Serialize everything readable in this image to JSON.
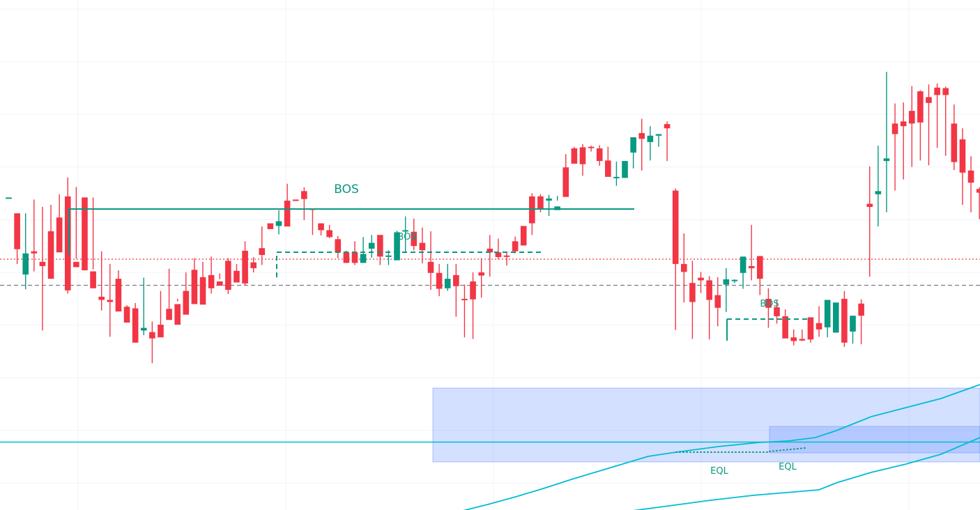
{
  "chart_data": {
    "type": "candlestick",
    "title": "",
    "xlabel": "",
    "ylabel": "",
    "y_range": [
      0.0,
      9.66
    ],
    "x_index_range": [
      0,
      128
    ],
    "grid": true,
    "colors": {
      "up": "#089981",
      "down": "#f23645",
      "label": "#089981",
      "zone_fill": "#2962ff",
      "zone_strong": "#2962ff",
      "ma": "#00bcd4",
      "resistance": "#f23645",
      "mid_level": "#787b86",
      "grid": "#f0f3fa"
    },
    "candles": [
      [
        0,
        5.92,
        5.92,
        5.92,
        5.92
      ],
      [
        1,
        5.62,
        5.4,
        4.94,
        4.66
      ],
      [
        2,
        4.46,
        5.62,
        4.86,
        4.18
      ],
      [
        3,
        4.9,
        5.88,
        4.86,
        4.52
      ],
      [
        4,
        4.7,
        5.74,
        4.62,
        3.4
      ],
      [
        5,
        5.28,
        5.78,
        4.38,
        4.38
      ],
      [
        6,
        5.54,
        5.98,
        4.88,
        5.14
      ],
      [
        7,
        5.94,
        6.3,
        4.16,
        4.1
      ],
      [
        8,
        4.7,
        6.12,
        4.6,
        4.76
      ],
      [
        9,
        5.92,
        5.92,
        4.54,
        5.0
      ],
      [
        10,
        4.52,
        5.92,
        4.2,
        4.56
      ],
      [
        11,
        4.04,
        4.9,
        3.98,
        3.78
      ],
      [
        12,
        3.98,
        4.66,
        3.94,
        3.28
      ],
      [
        13,
        4.38,
        4.54,
        3.76,
        3.82
      ],
      [
        14,
        3.85,
        3.88,
        3.55,
        3.57
      ],
      [
        15,
        3.82,
        3.92,
        3.17,
        3.17
      ],
      [
        16,
        3.4,
        4.4,
        3.45,
        3.31
      ],
      [
        17,
        3.37,
        3.57,
        3.25,
        2.78
      ],
      [
        18,
        3.51,
        4.15,
        3.27,
        3.45
      ],
      [
        19,
        3.81,
        4.57,
        3.6,
        3.62
      ],
      [
        20,
        3.9,
        4.0,
        3.51,
        3.95
      ],
      [
        21,
        4.15,
        4.5,
        3.7,
        3.99
      ],
      [
        22,
        4.55,
        4.77,
        3.9,
        4.0
      ],
      [
        23,
        4.41,
        4.7,
        3.89,
        4.17
      ],
      [
        24,
        4.45,
        4.8,
        4.2,
        4.1
      ],
      [
        25,
        4.33,
        4.48,
        4.25,
        4.37
      ],
      [
        26,
        4.72,
        4.77,
        4.17,
        4.09
      ],
      [
        27,
        4.53,
        4.66,
        4.31,
        4.38
      ],
      [
        28,
        4.91,
        5.09,
        4.29,
        4.25
      ],
      [
        29,
        4.69,
        4.79,
        4.58,
        4.5
      ],
      [
        30,
        4.96,
        5.37,
        4.83,
        4.64
      ],
      [
        31,
        5.43,
        5.32,
        5.32,
        5.38
      ],
      [
        32,
        5.38,
        5.68,
        5.47,
        5.22
      ],
      [
        33,
        5.86,
        6.18,
        5.37,
        5.77
      ],
      [
        34,
        5.88,
        5.95,
        5.86,
        5.95
      ],
      [
        35,
        6.04,
        6.11,
        5.89,
        5.49
      ],
      [
        36,
        5.71,
        5.71,
        5.69,
        5.21
      ],
      [
        37,
        5.43,
        5.4,
        5.3,
        5.2
      ],
      [
        38,
        5.3,
        5.4,
        5.17,
        5.15
      ],
      [
        39,
        5.13,
        5.19,
        4.88,
        4.77
      ],
      [
        40,
        4.88,
        4.88,
        4.68,
        4.91
      ],
      [
        41,
        4.88,
        5.09,
        4.68,
        4.64
      ],
      [
        42,
        4.68,
        4.7,
        4.85,
        5.17
      ],
      [
        43,
        4.95,
        5.21,
        5.06,
        4.78
      ],
      [
        44,
        5.21,
        5.05,
        4.8,
        4.64
      ],
      [
        45,
        4.82,
        4.92,
        4.82,
        4.64
      ],
      [
        46,
        4.73,
        5.29,
        5.26,
        4.74
      ],
      [
        47,
        5.3,
        5.56,
        5.3,
        4.88
      ],
      [
        48,
        5.27,
        5.52,
        5.0,
        4.92
      ],
      [
        49,
        5.06,
        5.35,
        4.92,
        4.67
      ],
      [
        50,
        4.7,
        5.28,
        4.49,
        4.17
      ],
      [
        51,
        4.49,
        4.66,
        4.19,
        4.05
      ],
      [
        52,
        4.2,
        4.66,
        4.38,
        4.15
      ],
      [
        53,
        4.45,
        4.66,
        4.24,
        3.66
      ],
      [
        54,
        4.0,
        4.27,
        3.98,
        3.27
      ],
      [
        55,
        4.33,
        4.5,
        3.99,
        3.24
      ],
      [
        56,
        4.5,
        4.77,
        4.44,
        4.02
      ],
      [
        57,
        4.95,
        5.21,
        4.88,
        4.42
      ],
      [
        58,
        4.88,
        5.14,
        4.79,
        4.75
      ],
      [
        59,
        4.82,
        4.88,
        4.8,
        4.63
      ],
      [
        60,
        5.09,
        5.18,
        4.9,
        4.86
      ],
      [
        61,
        5.38,
        5.35,
        5.01,
        5.07
      ],
      [
        62,
        5.94,
        6.0,
        5.43,
        5.21
      ],
      [
        63,
        5.94,
        5.98,
        5.71,
        5.64
      ],
      [
        64,
        5.86,
        5.97,
        5.9,
        5.57
      ],
      [
        65,
        5.68,
        5.86,
        5.75,
        5.95
      ],
      [
        66,
        6.49,
        6.74,
        5.93,
        5.95
      ],
      [
        67,
        6.85,
        6.88,
        6.56,
        6.67
      ],
      [
        68,
        6.87,
        6.93,
        6.55,
        6.33
      ],
      [
        69,
        6.88,
        6.9,
        6.87,
        6.79
      ],
      [
        70,
        6.85,
        6.91,
        6.61,
        6.52
      ],
      [
        71,
        6.62,
        6.88,
        6.31,
        6.35
      ],
      [
        72,
        6.29,
        6.6,
        6.31,
        6.14
      ],
      [
        73,
        6.29,
        6.32,
        6.61,
        6.61
      ],
      [
        74,
        6.77,
        7.04,
        7.06,
        6.47
      ],
      [
        75,
        7.14,
        7.41,
        7.03,
        6.43
      ],
      [
        76,
        6.97,
        7.27,
        7.09,
        6.62
      ],
      [
        77,
        7.09,
        7.11,
        7.12,
        6.88
      ],
      [
        78,
        7.31,
        7.36,
        7.23,
        6.61
      ],
      [
        79,
        6.05,
        6.09,
        4.66,
        3.41
      ],
      [
        80,
        4.66,
        5.24,
        4.51,
        3.93
      ],
      [
        81,
        4.3,
        4.72,
        3.94,
        3.24
      ],
      [
        82,
        4.4,
        4.51,
        4.35,
        4.11
      ],
      [
        83,
        4.35,
        4.43,
        3.98,
        3.23
      ],
      [
        84,
        4.07,
        4.41,
        3.83,
        3.48
      ],
      [
        85,
        4.27,
        4.58,
        4.37,
        3.75
      ],
      [
        86,
        4.36,
        4.37,
        4.36,
        4.3
      ],
      [
        87,
        4.49,
        4.71,
        4.8,
        4.19
      ],
      [
        88,
        4.62,
        5.4,
        4.58,
        4.35
      ],
      [
        89,
        4.81,
        4.78,
        4.38,
        4.07
      ],
      [
        90,
        4.0,
        4.2,
        3.83,
        3.45
      ],
      [
        91,
        3.84,
        3.98,
        3.67,
        3.53
      ],
      [
        92,
        3.67,
        3.8,
        3.25,
        3.32
      ],
      [
        93,
        3.27,
        3.42,
        3.2,
        3.12
      ],
      [
        94,
        3.24,
        3.42,
        3.21,
        3.2
      ],
      [
        95,
        3.65,
        3.62,
        3.23,
        3.17
      ],
      [
        96,
        3.54,
        3.86,
        3.42,
        3.28
      ],
      [
        97,
        3.46,
        3.95,
        3.98,
        3.27
      ],
      [
        98,
        3.36,
        3.66,
        3.93,
        3.36
      ],
      [
        99,
        4.0,
        4.15,
        3.17,
        3.09
      ],
      [
        100,
        3.38,
        3.54,
        3.68,
        3.15
      ],
      [
        101,
        3.91,
        3.99,
        3.68,
        3.14
      ],
      [
        102,
        5.8,
        6.51,
        5.74,
        4.42
      ],
      [
        103,
        5.98,
        6.9,
        6.04,
        5.37
      ],
      [
        104,
        6.61,
        8.3,
        6.66,
        5.64
      ],
      [
        105,
        7.32,
        7.7,
        7.12,
        6.05
      ],
      [
        106,
        7.36,
        7.72,
        7.27,
        6.26
      ],
      [
        107,
        7.56,
        8.03,
        7.32,
        6.5
      ],
      [
        108,
        7.93,
        7.95,
        7.34,
        6.62
      ],
      [
        109,
        7.82,
        8.06,
        7.71,
        6.53
      ],
      [
        110,
        8.0,
        8.08,
        7.86,
        6.86
      ],
      [
        111,
        7.99,
        8.02,
        7.86,
        6.71
      ],
      [
        112,
        7.32,
        7.68,
        6.59,
        6.44
      ],
      [
        113,
        7.02,
        7.23,
        6.39,
        5.78
      ],
      [
        114,
        6.43,
        6.7,
        6.2,
        5.64
      ],
      [
        115,
        6.08,
        6.11,
        6.01,
        5.51
      ],
      [
        116,
        6.05,
        6.15,
        5.84,
        5.55
      ],
      [
        117,
        6.03,
        6.19,
        5.91,
        5.7
      ],
      [
        118,
        6.23,
        6.71,
        6.11,
        5.99
      ],
      [
        119,
        6.8,
        6.95,
        6.57,
        6.32
      ],
      [
        120,
        7.12,
        7.2,
        6.84,
        6.57
      ],
      [
        121,
        7.01,
        7.35,
        6.64,
        6.49
      ],
      [
        122,
        7.08,
        7.17,
        6.94,
        6.76
      ],
      [
        123,
        7.17,
        7.41,
        7.1,
        6.84
      ],
      [
        124,
        7.4,
        7.46,
        7.27,
        7.11
      ],
      [
        125,
        7.61,
        7.67,
        7.37,
        7.32
      ],
      [
        126,
        7.74,
        7.85,
        7.45,
        7.26
      ],
      [
        127,
        7.5,
        7.72,
        7.25,
        7.07
      ],
      [
        128,
        7.3,
        7.4,
        7.15,
        7.0
      ]
    ],
    "annotations": {
      "labels": [
        {
          "text": "BOS",
          "kind": "major"
        },
        {
          "text": "BOS",
          "kind": "minor"
        },
        {
          "text": "BOS",
          "kind": "minor"
        },
        {
          "text": "EQL",
          "kind": "minor"
        },
        {
          "text": "EQL",
          "kind": "minor"
        }
      ]
    }
  }
}
